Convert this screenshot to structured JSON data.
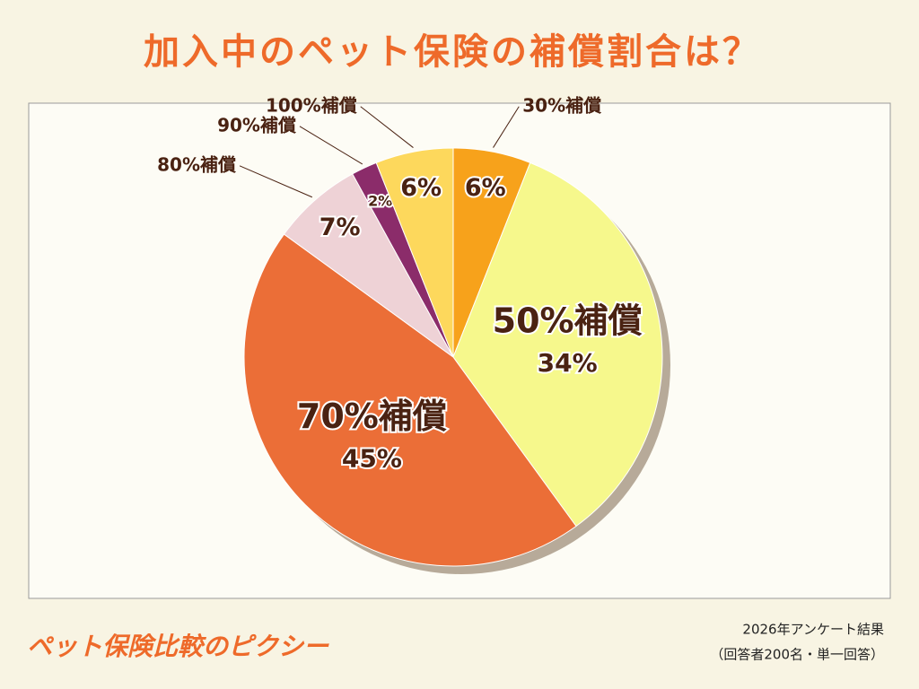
{
  "chart_data": {
    "type": "pie",
    "title": "加入中のペット保険の補償割合は？",
    "categories": [
      "30%補償",
      "50%補償",
      "70%補償",
      "80%補償",
      "90%補償",
      "100%補償"
    ],
    "values": [
      6,
      34,
      45,
      7,
      2,
      6
    ],
    "value_labels": [
      "6%",
      "34%",
      "45%",
      "7%",
      "2%",
      "6%"
    ],
    "colors": [
      "#f7a21b",
      "#f6f88c",
      "#eb6e37",
      "#eed2d6",
      "#8b2c6a",
      "#fdd85c"
    ]
  },
  "footer": {
    "brand": "ペット保険比較のピクシー",
    "note": "2026年アンケート結果",
    "respondents": "（回答者200名・単一回答）"
  }
}
